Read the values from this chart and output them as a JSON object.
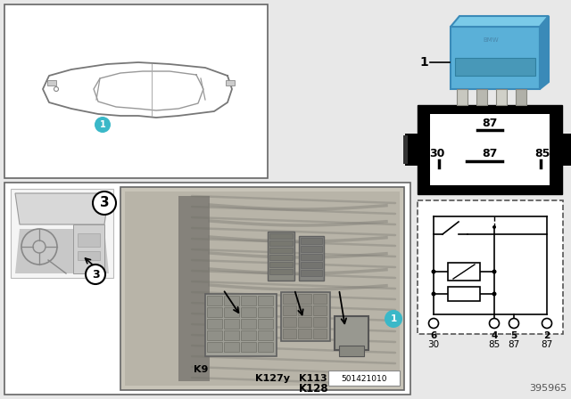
{
  "bg_color": "#e8e8e8",
  "white": "#ffffff",
  "black": "#000000",
  "teal": "#3ab8c8",
  "part_number": "395965",
  "part_num_small": "501421010",
  "relay_pin_labels": [
    "87",
    "30",
    "87",
    "85"
  ],
  "circuit_pins_top": [
    "6",
    "4",
    "5",
    "2"
  ],
  "circuit_pins_bot": [
    "30",
    "85",
    "87",
    "87"
  ],
  "labels_bottom": [
    "K9",
    "K127y",
    "K113",
    "K128"
  ],
  "blue_relay_color": "#5ab0d8",
  "blue_relay_dark": "#3a8ab8",
  "blue_relay_top": "#7acae8"
}
